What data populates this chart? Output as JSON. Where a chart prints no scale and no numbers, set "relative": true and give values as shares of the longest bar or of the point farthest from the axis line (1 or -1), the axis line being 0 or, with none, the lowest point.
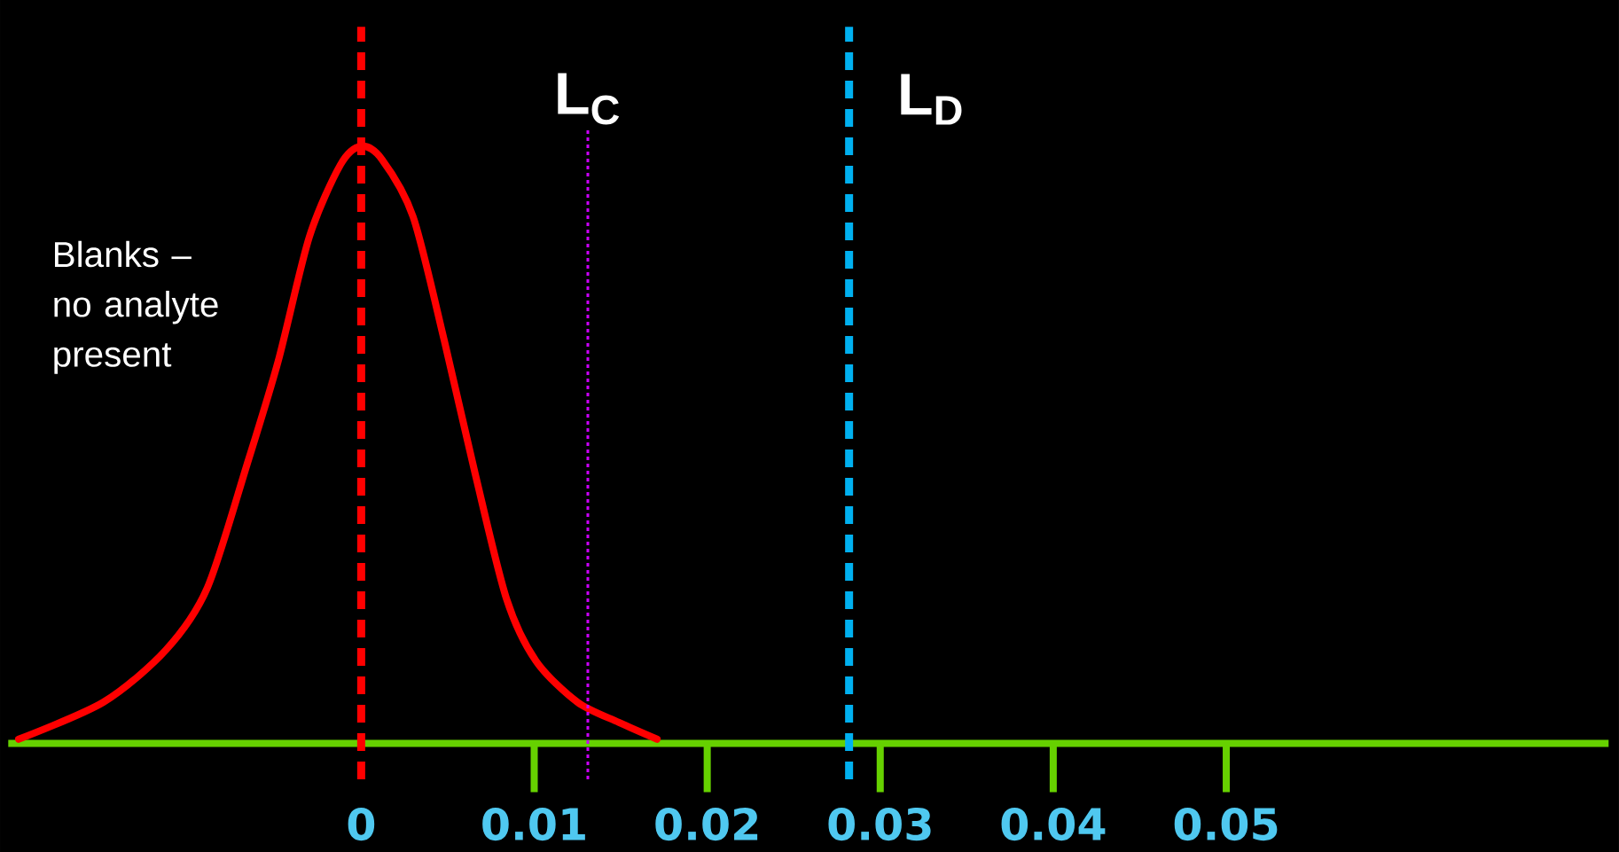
{
  "chart_data": {
    "type": "line",
    "relative": true,
    "x": [
      -0.0198,
      -0.0149,
      -0.0113,
      -0.0089,
      -0.0066,
      -0.0048,
      -0.003,
      -0.0012,
      0,
      0.0012,
      0.003,
      0.0048,
      0.0066,
      0.0084,
      0.0101,
      0.0125,
      0.0149,
      0.0171
    ],
    "series": [
      {
        "color": "#ff0000",
        "values": [
          0.007,
          0.069,
          0.156,
          0.26,
          0.467,
          0.64,
          0.848,
          0.969,
          1,
          0.978,
          0.882,
          0.675,
          0.45,
          0.242,
          0.138,
          0.069,
          0.035,
          0.007
        ]
      }
    ],
    "xlim": [
      -0.0204,
      0.0721
    ],
    "xticks": [
      0,
      0.01,
      0.02,
      0.03,
      0.04,
      0.05
    ],
    "ref_lines": [
      {
        "axis": "x",
        "value": 0,
        "color": "#ff0000",
        "line_style": "dashed"
      },
      {
        "axis": "x",
        "value": 0.0131,
        "label": "L$_{C}$",
        "color": "#cc00ff",
        "line_style": "dotted"
      },
      {
        "axis": "x",
        "value": 0.0282,
        "label": "L$_{D}$",
        "color": "#00b0f0",
        "line_style": "dashed"
      }
    ],
    "annotations": [
      "Blanks – no analyte present"
    ]
  }
}
